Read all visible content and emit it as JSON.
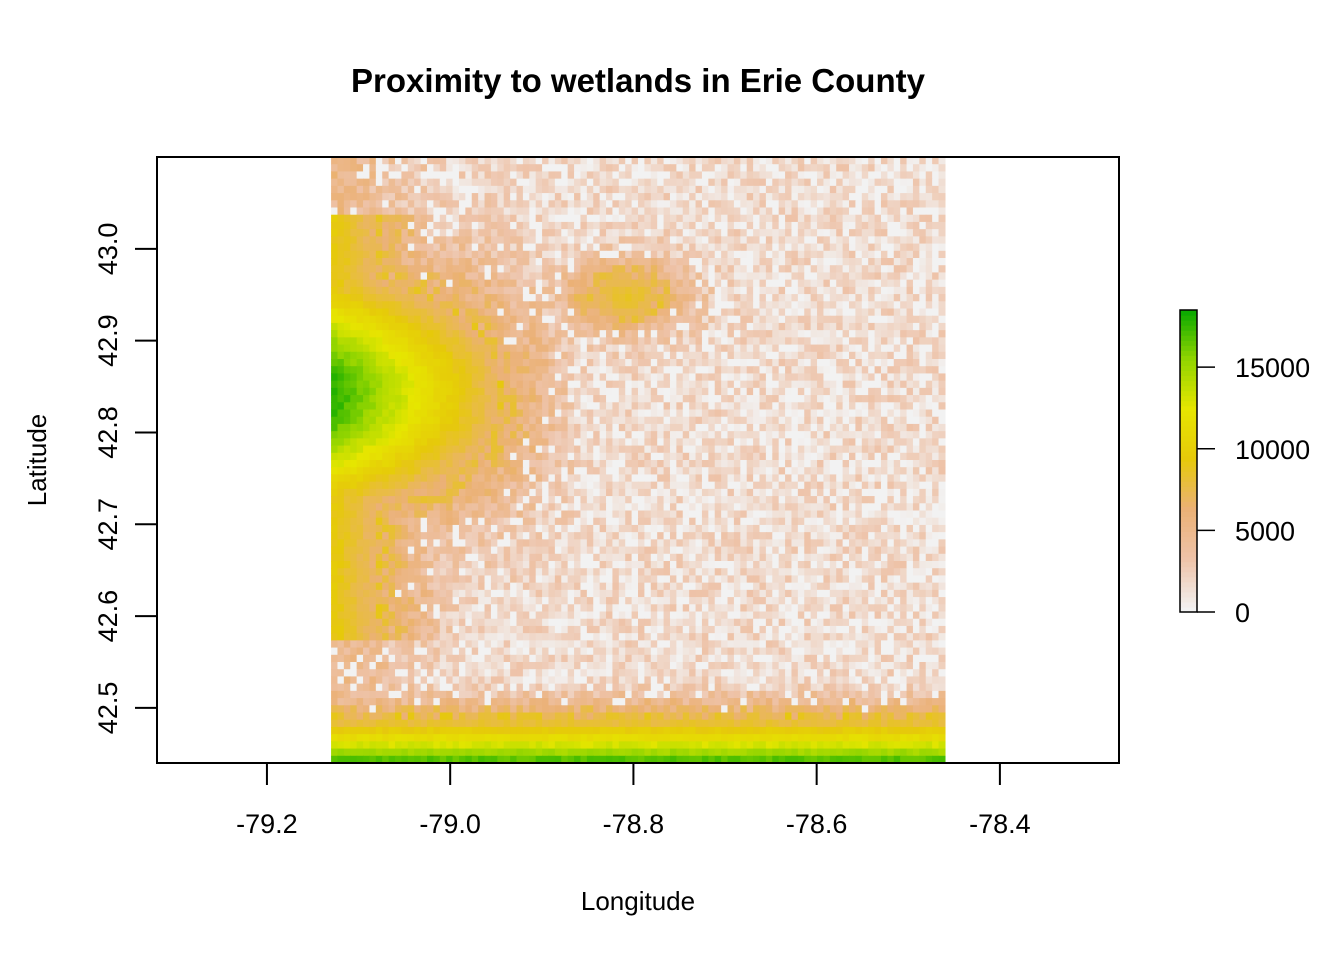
{
  "chart_data": {
    "type": "heatmap",
    "title": "Proximity to wetlands in Erie County",
    "xlabel": "Longitude",
    "ylabel": "Latitude",
    "xlim": [
      -79.32,
      -78.27
    ],
    "ylim": [
      42.44,
      43.1
    ],
    "raster_extent": {
      "x": [
        -79.13,
        -78.46
      ],
      "y": [
        42.44,
        43.1
      ]
    },
    "x_ticks": [
      -79.2,
      -79.0,
      -78.8,
      -78.6,
      -78.4
    ],
    "x_tick_labels": [
      "-79.2",
      "-79.0",
      "-78.8",
      "-78.6",
      "-78.4"
    ],
    "y_ticks": [
      42.5,
      42.6,
      42.7,
      42.8,
      42.9,
      43.0
    ],
    "y_tick_labels": [
      "42.5",
      "42.6",
      "42.7",
      "42.8",
      "42.9",
      "43.0"
    ],
    "value_range": [
      0,
      18500
    ],
    "colorbar": {
      "ticks": [
        0,
        5000,
        10000,
        15000
      ],
      "tick_labels": [
        "0",
        "5000",
        "10000",
        "15000"
      ],
      "colors": [
        "#f2f2f2",
        "#eec3a9",
        "#ebb176",
        "#e6c90a",
        "#e6e600",
        "#8fd400",
        "#00a600"
      ]
    },
    "grid": false,
    "legend_position": "right",
    "hotspots": [
      {
        "lon": -79.12,
        "lat": 42.82,
        "value": 17500,
        "desc": "west-central green peak"
      },
      {
        "lon": -78.82,
        "lat": 42.91,
        "value": 8000,
        "desc": "central orange wedge"
      },
      {
        "lon": -78.5,
        "lat": 42.45,
        "value": 16000,
        "desc": "south-east green"
      },
      {
        "lon": -78.85,
        "lat": 42.45,
        "value": 15000,
        "desc": "south-central green"
      }
    ]
  }
}
